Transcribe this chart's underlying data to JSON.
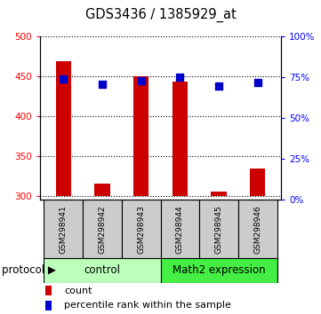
{
  "title": "GDS3436 / 1385929_at",
  "samples": [
    "GSM298941",
    "GSM298942",
    "GSM298943",
    "GSM298944",
    "GSM298945",
    "GSM298946"
  ],
  "counts": [
    469,
    316,
    450,
    444,
    306,
    335
  ],
  "percentile_ranks": [
    74,
    71,
    73,
    75,
    70,
    72
  ],
  "ylim_left": [
    295,
    500
  ],
  "ylim_right": [
    0,
    100
  ],
  "yticks_left": [
    300,
    350,
    400,
    450,
    500
  ],
  "yticks_right": [
    0,
    25,
    50,
    75,
    100
  ],
  "bar_color": "#cc0000",
  "dot_color": "#0000cc",
  "bar_bottom": 300,
  "control_color": "#bbffbb",
  "math2_color": "#44ee44",
  "label_area_color": "#cccccc",
  "legend_count_color": "#cc0000",
  "legend_pct_color": "#0000cc",
  "n_control": 3,
  "n_math2": 3,
  "bar_width": 0.4,
  "dot_size": 35
}
